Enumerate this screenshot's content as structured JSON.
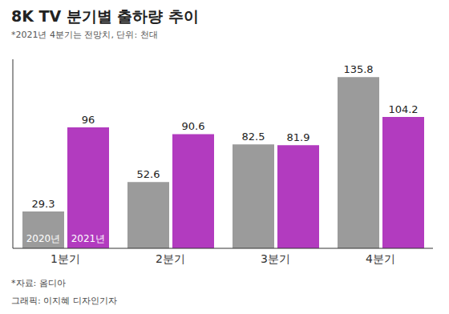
{
  "chart_data": {
    "type": "bar",
    "title": "8K TV 분기별 출하량 추이",
    "subtitle": "*2021년 4분기는 전망치, 단위: 천대",
    "categories": [
      "1분기",
      "2분기",
      "3분기",
      "4분기"
    ],
    "series": [
      {
        "name": "2020년",
        "color": "#9b9b9b",
        "values": [
          29.3,
          52.6,
          82.5,
          135.8
        ]
      },
      {
        "name": "2021년",
        "color": "#b23bbf",
        "values": [
          96,
          90.6,
          81.9,
          104.2
        ]
      }
    ],
    "ylim": [
      0,
      150
    ],
    "yticks": [],
    "tick_labels": "x",
    "data_labels": true,
    "annotations": [
      "*자료: 옴디아",
      "그래픽: 이지혜 디자인기자"
    ]
  }
}
